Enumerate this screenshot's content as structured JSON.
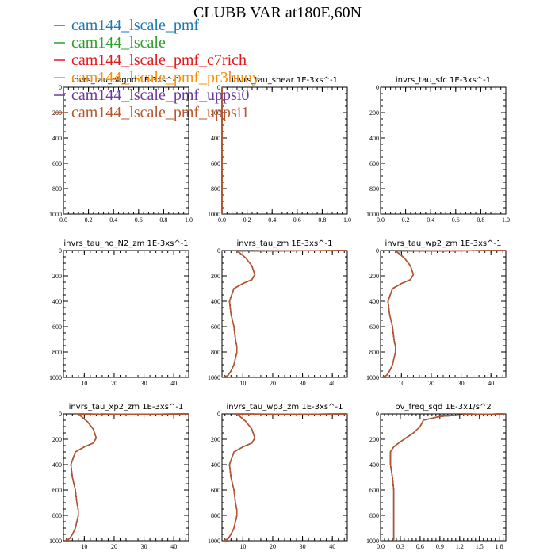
{
  "title": "CLUBB VAR at180E,60N",
  "legend": [
    {
      "label": "cam144_lscale_pmf",
      "color": "#1f77b4"
    },
    {
      "label": "cam144_lscale",
      "color": "#2ca02c"
    },
    {
      "label": "cam144_lscale_pmf_c7rich",
      "color": "#e31a1c"
    },
    {
      "label": "cam144_lscale_pmf_pr3buoy",
      "color": "#ff8c00"
    },
    {
      "label": "cam144_lscale_pmf_uppsi0",
      "color": "#6a3d9a"
    },
    {
      "label": "cam144_lscale_pmf_uppsi1",
      "color": "#b5562c"
    }
  ],
  "chart_data": [
    {
      "type": "line",
      "title": "invrs_tau_bkgnd   1E-3xs^-1",
      "xlim": [
        0,
        1
      ],
      "ylim": [
        0,
        1000
      ],
      "y_inverted": true,
      "xticks": [
        "0.0",
        "0.2",
        "0.4",
        "0.6",
        "0.8",
        "1.0"
      ],
      "yticks": [
        "0",
        "200",
        "400",
        "600",
        "800",
        "1000"
      ],
      "series": [
        {
          "x": [
            0,
            0,
            0
          ],
          "y": [
            0,
            500,
            1000
          ]
        }
      ]
    },
    {
      "type": "line",
      "title": "invrs_tau_shear   1E-3xs^-1",
      "xlim": [
        0,
        1
      ],
      "ylim": [
        0,
        1000
      ],
      "y_inverted": true,
      "xticks": [
        "0.0",
        "0.2",
        "0.4",
        "0.6",
        "0.8",
        "1.0"
      ],
      "yticks": [
        "0",
        "200",
        "400",
        "600",
        "800",
        "1000"
      ],
      "series": [
        {
          "x": [
            0,
            0,
            0
          ],
          "y": [
            0,
            500,
            1000
          ]
        }
      ]
    },
    {
      "type": "line",
      "title": "invrs_tau_sfc   1E-3xs^-1",
      "xlim": [
        0,
        1
      ],
      "ylim": [
        0,
        1000
      ],
      "y_inverted": true,
      "xticks": [
        "0.0",
        "0.2",
        "0.4",
        "0.6",
        "0.8",
        "1.0"
      ],
      "yticks": [
        "0",
        "200",
        "400",
        "600",
        "800",
        "1000"
      ],
      "series": []
    },
    {
      "type": "line",
      "title": "invrs_tau_no_N2_zm   1E-3xs^-1",
      "xlim": [
        3,
        45
      ],
      "ylim": [
        0,
        1000
      ],
      "y_inverted": true,
      "xticks": [
        "10",
        "20",
        "30",
        "40"
      ],
      "yticks": [
        "0",
        "200",
        "400",
        "600",
        "800",
        "1000"
      ],
      "series": []
    },
    {
      "type": "line",
      "title": "invrs_tau_zm   1E-3xs^-1",
      "xlim": [
        3,
        45
      ],
      "ylim": [
        0,
        1000
      ],
      "y_inverted": true,
      "xticks": [
        "10",
        "20",
        "30",
        "40"
      ],
      "yticks": [
        "0",
        "200",
        "400",
        "600",
        "800",
        "1000"
      ],
      "series": [
        {
          "x": [
            45,
            8,
            9,
            11,
            13,
            14,
            13,
            10,
            7,
            5.5,
            6,
            7,
            7.5,
            8,
            8,
            7.5,
            7,
            6,
            5,
            3.5,
            5
          ],
          "y": [
            0,
            5,
            20,
            60,
            120,
            190,
            230,
            260,
            300,
            400,
            500,
            600,
            700,
            760,
            800,
            850,
            900,
            950,
            985,
            1000,
            1000
          ]
        }
      ]
    },
    {
      "type": "line",
      "title": "invrs_tau_wp2_zm   1E-3xs^-1",
      "xlim": [
        3,
        45
      ],
      "ylim": [
        0,
        1000
      ],
      "y_inverted": true,
      "xticks": [
        "10",
        "20",
        "30",
        "40"
      ],
      "yticks": [
        "0",
        "200",
        "400",
        "600",
        "800",
        "1000"
      ],
      "series": [
        {
          "x": [
            45,
            8,
            9,
            11,
            13,
            14,
            13,
            10,
            7,
            5.5,
            6,
            7,
            7.5,
            8,
            8,
            7.5,
            7,
            6,
            5,
            3.5,
            5
          ],
          "y": [
            0,
            5,
            20,
            60,
            120,
            190,
            230,
            260,
            300,
            400,
            500,
            600,
            700,
            760,
            800,
            850,
            900,
            950,
            985,
            1000,
            1000
          ]
        }
      ]
    },
    {
      "type": "line",
      "title": "invrs_tau_xp2_zm   1E-3xs^-1",
      "xlim": [
        3,
        45
      ],
      "ylim": [
        0,
        1000
      ],
      "y_inverted": true,
      "xticks": [
        "10",
        "20",
        "30",
        "40"
      ],
      "yticks": [
        "0",
        "200",
        "400",
        "600",
        "800",
        "1000"
      ],
      "series": [
        {
          "x": [
            45,
            8,
            9,
            11,
            13,
            14,
            13,
            10,
            7,
            5.5,
            6,
            7,
            7.5,
            8,
            8,
            7.5,
            7,
            6,
            5,
            3.5,
            5
          ],
          "y": [
            0,
            5,
            20,
            60,
            120,
            190,
            230,
            260,
            300,
            400,
            500,
            600,
            700,
            760,
            800,
            850,
            900,
            950,
            985,
            1000,
            1000
          ]
        }
      ]
    },
    {
      "type": "line",
      "title": "invrs_tau_wp3_zm   1E-3xs^-1",
      "xlim": [
        3,
        45
      ],
      "ylim": [
        0,
        1000
      ],
      "y_inverted": true,
      "xticks": [
        "10",
        "20",
        "30",
        "40"
      ],
      "yticks": [
        "0",
        "200",
        "400",
        "600",
        "800",
        "1000"
      ],
      "series": [
        {
          "x": [
            45,
            8,
            9,
            11,
            13,
            14,
            13,
            10,
            7,
            5.5,
            6,
            7,
            7.5,
            8,
            8,
            7.5,
            7,
            6,
            5,
            3.5,
            5
          ],
          "y": [
            0,
            5,
            20,
            60,
            120,
            190,
            230,
            260,
            300,
            400,
            500,
            600,
            700,
            760,
            800,
            850,
            900,
            950,
            985,
            1000,
            1000
          ]
        }
      ]
    },
    {
      "type": "line",
      "title": "bv_freq_sqd   1E-3x1/s^2",
      "xlim": [
        0,
        1.9
      ],
      "ylim": [
        0,
        1000
      ],
      "y_inverted": true,
      "xticks": [
        "0.0",
        "0.3",
        "0.6",
        "0.9",
        "1.2",
        "1.5",
        "1.8"
      ],
      "yticks": [
        "0",
        "200",
        "400",
        "600",
        "800",
        "1000"
      ],
      "series": [
        {
          "x": [
            1.85,
            1.3,
            0.9,
            0.65,
            0.6,
            0.5,
            0.3,
            0.2,
            0.15,
            0.15,
            0.18,
            0.2,
            0.2,
            0.2,
            0.2,
            0.2
          ],
          "y": [
            0,
            5,
            20,
            50,
            100,
            150,
            220,
            260,
            300,
            400,
            500,
            600,
            700,
            800,
            900,
            1000
          ]
        }
      ]
    }
  ]
}
